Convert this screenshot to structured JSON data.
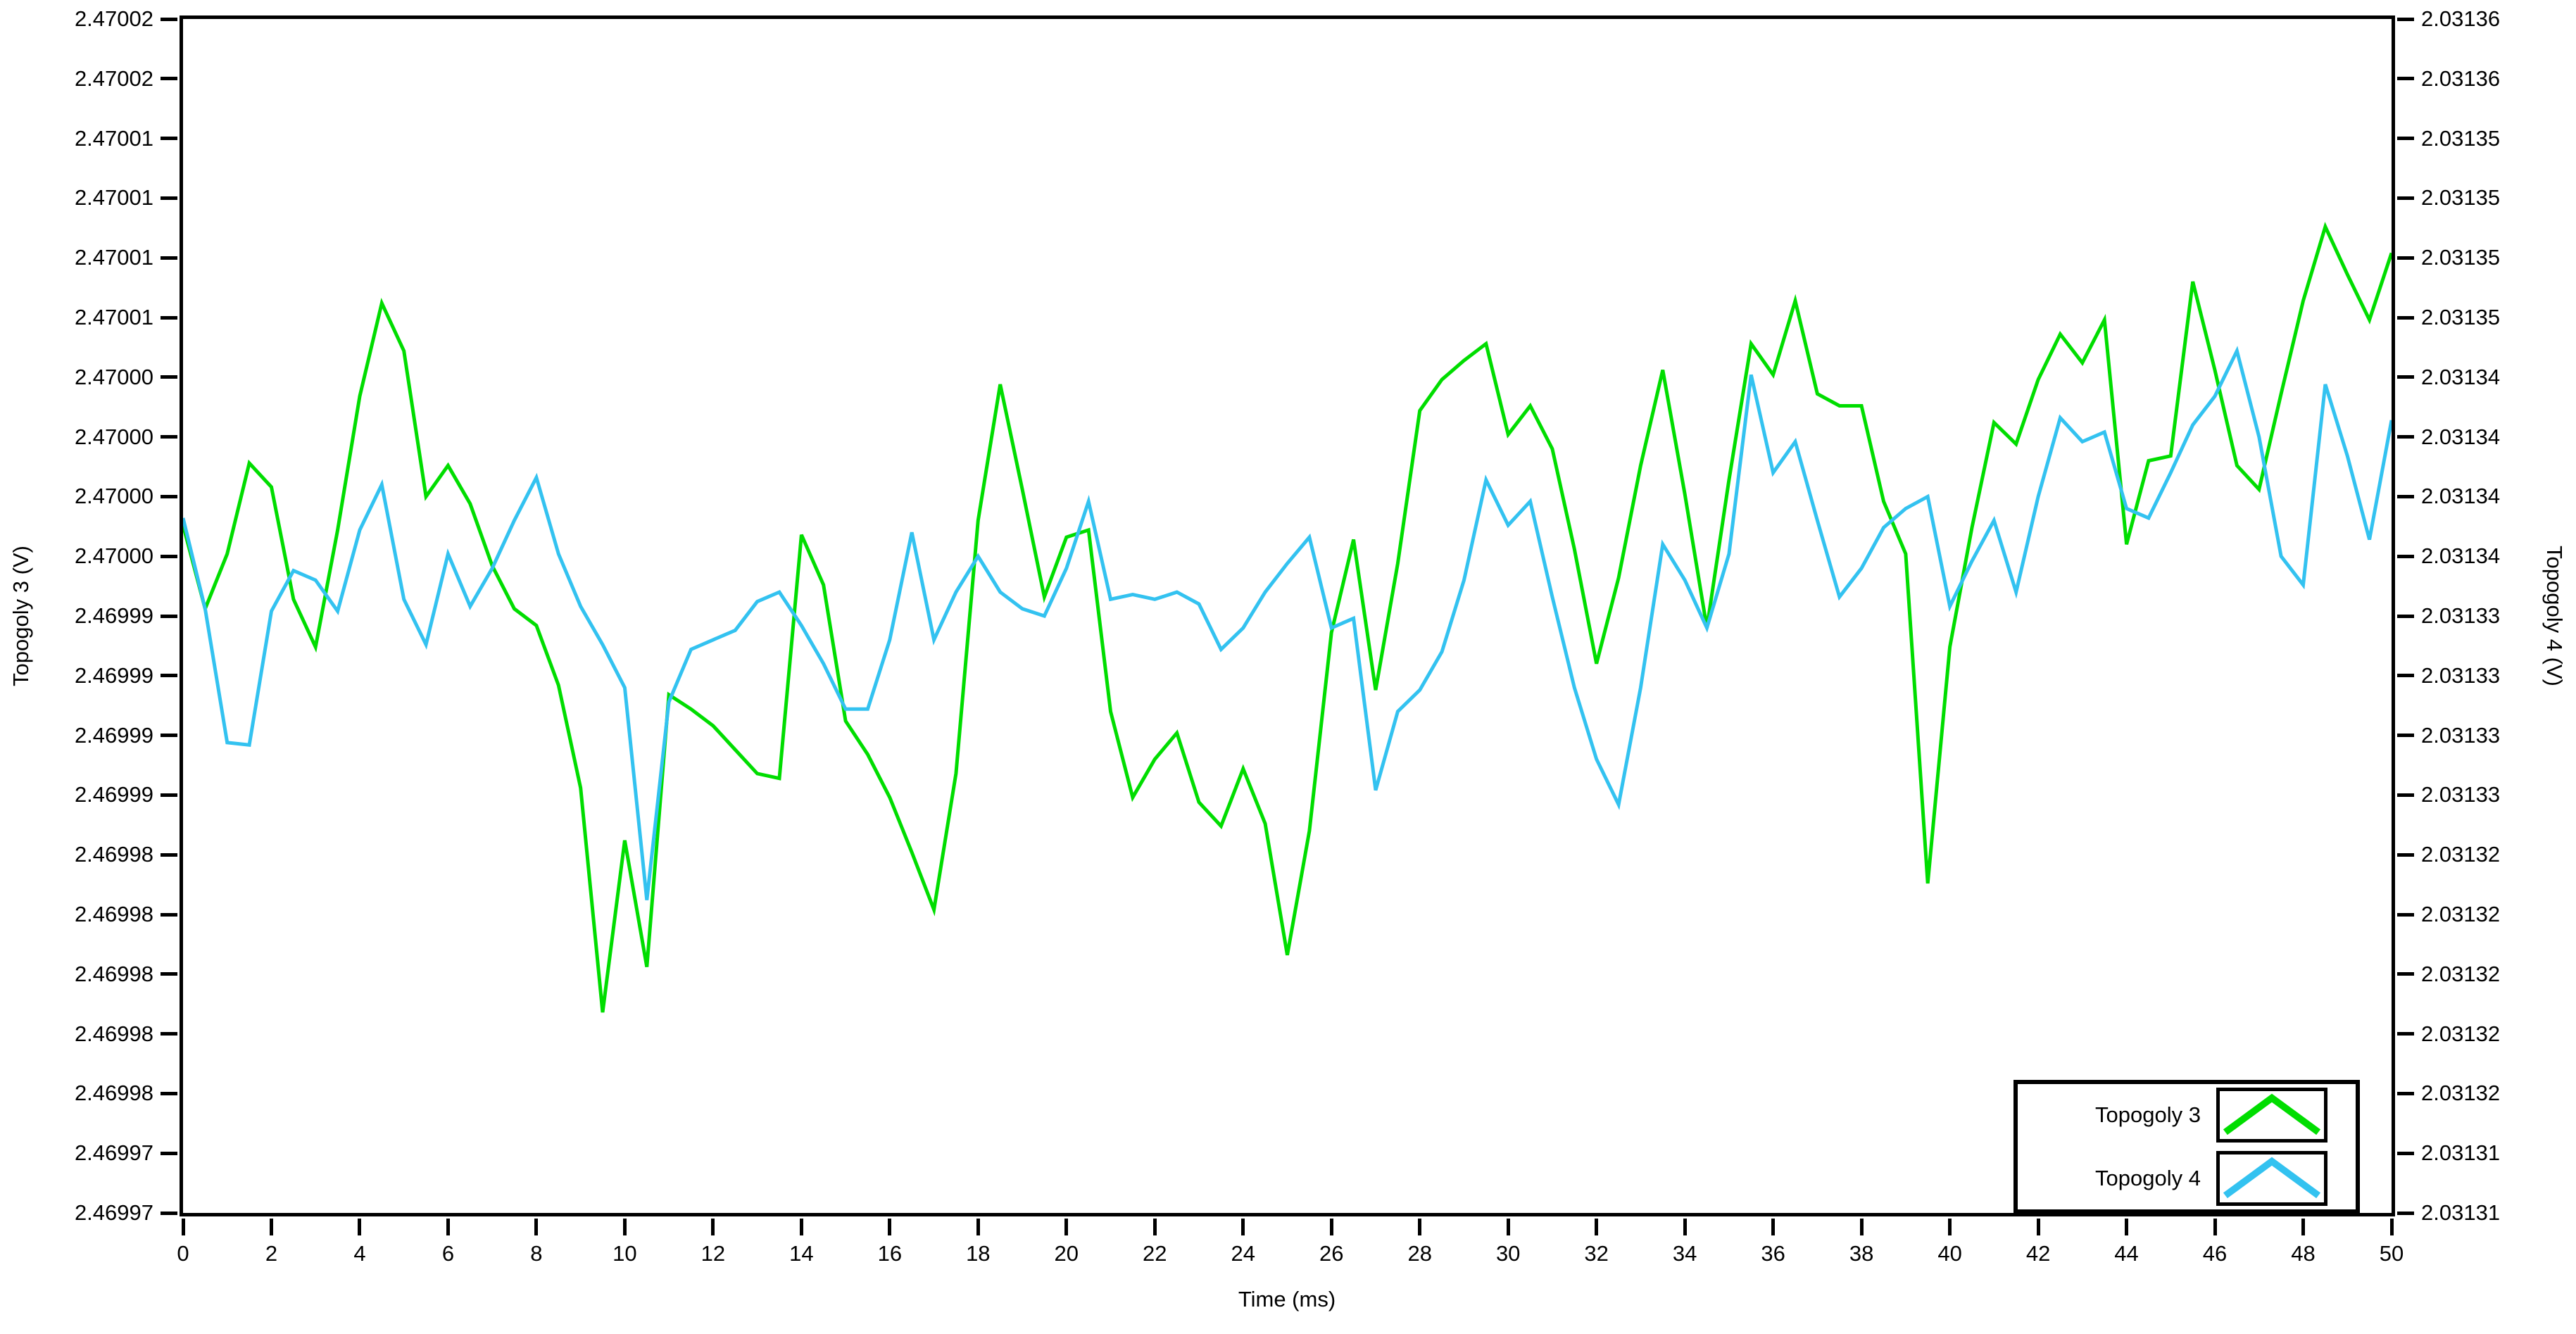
{
  "chart_data": {
    "type": "line",
    "title": "",
    "grid": false,
    "x_axis": {
      "label": "Time (ms)",
      "range": [
        0,
        50
      ],
      "tick_labels": [
        "0",
        "2",
        "4",
        "6",
        "8",
        "10",
        "12",
        "14",
        "16",
        "18",
        "20",
        "22",
        "24",
        "26",
        "28",
        "30",
        "32",
        "34",
        "36",
        "38",
        "40",
        "42",
        "44",
        "46",
        "48",
        "50"
      ]
    },
    "y_axis_left": {
      "label": "Topogoly 3 (V)",
      "range": [
        2.469972,
        2.470022
      ],
      "tick_labels": [
        "2.47002",
        "2.47002",
        "2.47001",
        "2.47001",
        "2.47001",
        "2.47001",
        "2.47000",
        "2.47000",
        "2.47000",
        "2.47000",
        "2.46999",
        "2.46999",
        "2.46999",
        "2.46999",
        "2.46998",
        "2.46998",
        "2.46998",
        "2.46998",
        "2.46998",
        "2.46997",
        "2.46997"
      ]
    },
    "y_axis_right": {
      "label": "Topogoly 4 (V)",
      "range": [
        2.031312,
        2.031362
      ],
      "tick_labels": [
        "2.03136",
        "2.03136",
        "2.03135",
        "2.03135",
        "2.03135",
        "2.03135",
        "2.03134",
        "2.03134",
        "2.03134",
        "2.03134",
        "2.03133",
        "2.03133",
        "2.03133",
        "2.03133",
        "2.03132",
        "2.03132",
        "2.03132",
        "2.03132",
        "2.03132",
        "2.03131",
        "2.03131"
      ]
    },
    "legend": {
      "position": "bottom-right",
      "entries": [
        {
          "label": "Topogoly 3",
          "color": "#00dd00"
        },
        {
          "label": "Topogoly 4",
          "color": "#33c2f0"
        }
      ]
    },
    "series": [
      {
        "name": "Topogoly 3",
        "axis": "left",
        "color": "#00dd00",
        "x_start": 0,
        "x_step": 0.5,
        "values": [
          2.4700008,
          2.4699973,
          2.4699996,
          2.4700034,
          2.4700024,
          2.4699977,
          2.4699957,
          2.4700006,
          2.4700062,
          2.4700101,
          2.4700081,
          2.470002,
          2.4700033,
          2.4700017,
          2.4699991,
          2.4699973,
          2.4699966,
          2.4699941,
          2.4699898,
          2.4699804,
          2.4699876,
          2.4699823,
          2.4699937,
          2.4699931,
          2.4699924,
          2.4699914,
          2.4699904,
          2.4699902,
          2.4700004,
          2.4699983,
          2.4699926,
          2.4699912,
          2.4699894,
          2.4699871,
          2.4699847,
          2.4699904,
          2.470001,
          2.4700067,
          2.4700023,
          2.4699978,
          2.4700003,
          2.4700006,
          2.469993,
          2.4699894,
          2.469991,
          2.4699921,
          2.4699892,
          2.4699882,
          2.4699906,
          2.4699883,
          2.4699828,
          2.469988,
          2.4699963,
          2.4700002,
          2.4699939,
          2.4699992,
          2.4700056,
          2.4700069,
          2.4700077,
          2.4700084,
          2.4700046,
          2.4700058,
          2.470004,
          2.4699998,
          2.469995,
          2.4699986,
          2.4700033,
          2.4700073,
          2.4700021,
          2.4699965,
          2.4700027,
          2.4700084,
          2.4700071,
          2.4700102,
          2.4700063,
          2.4700058,
          2.4700058,
          2.4700018,
          2.4699996,
          2.4699858,
          2.4699957,
          2.4700007,
          2.4700051,
          2.4700042,
          2.4700069,
          2.4700088,
          2.4700076,
          2.4700094,
          2.47,
          2.4700035,
          2.4700037,
          2.470011,
          2.4700073,
          2.4700033,
          2.4700023,
          2.4700063,
          2.4700102,
          2.4700133,
          2.4700113,
          2.4700094,
          2.4700122
        ]
      },
      {
        "name": "Topogoly 4",
        "axis": "right",
        "color": "#33c2f0",
        "x_start": 0,
        "x_step": 0.5,
        "values": [
          2.0313411,
          2.0313373,
          2.0313317,
          2.0313316,
          2.0313372,
          2.0313389,
          2.0313385,
          2.0313372,
          2.0313406,
          2.0313425,
          2.0313377,
          2.0313358,
          2.0313396,
          2.0313374,
          2.031339,
          2.031341,
          2.0313428,
          2.0313396,
          2.0313374,
          2.0313358,
          2.031334,
          2.0313251,
          2.0313334,
          2.0313356,
          2.031336,
          2.0313364,
          2.0313376,
          2.031338,
          2.0313366,
          2.031335,
          2.0313331,
          2.0313331,
          2.031336,
          2.0313405,
          2.031336,
          2.031338,
          2.0313395,
          2.031338,
          2.0313373,
          2.031337,
          2.031339,
          2.0313418,
          2.0313377,
          2.0313379,
          2.0313377,
          2.031338,
          2.0313375,
          2.0313356,
          2.0313365,
          2.031338,
          2.0313392,
          2.0313403,
          2.0313365,
          2.0313369,
          2.0313297,
          2.031333,
          2.0313339,
          2.0313355,
          2.0313385,
          2.0313427,
          2.0313408,
          2.0313418,
          2.0313378,
          2.031334,
          2.031331,
          2.0313291,
          2.031334,
          2.03134,
          2.0313385,
          2.0313365,
          2.0313396,
          2.0313471,
          2.031343,
          2.0313443,
          2.031341,
          2.0313378,
          2.031339,
          2.0313407,
          2.0313415,
          2.031342,
          2.0313374,
          2.0313393,
          2.031341,
          2.031338,
          2.031342,
          2.0313453,
          2.0313443,
          2.0313447,
          2.0313415,
          2.0313411,
          2.031343,
          2.031345,
          2.0313462,
          2.0313481,
          2.0313445,
          2.0313395,
          2.0313383,
          2.0313467,
          2.0313437,
          2.0313402,
          2.0313452
        ]
      }
    ]
  }
}
